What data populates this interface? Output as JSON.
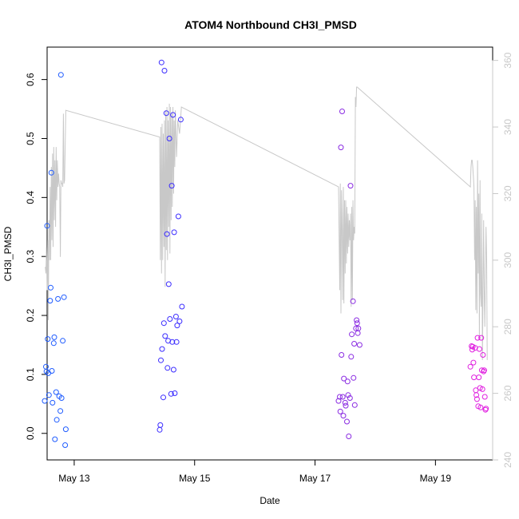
{
  "chart_data": {
    "type": "scatter",
    "title": "ATOM4 Northbound CH3I_PMSD",
    "xlabel": "Date",
    "ylabel": "CH3I_PMSD",
    "x_ticks": [
      "May 13",
      "May 15",
      "May 17",
      "May 19"
    ],
    "y_ticks": [
      "0.0",
      "0.1",
      "0.2",
      "0.3",
      "0.4",
      "0.5",
      "0.6"
    ],
    "y2_ticks": [
      "240",
      "260",
      "280",
      "300",
      "320",
      "340",
      "360"
    ],
    "xlim_days": [
      12.55,
      19.95
    ],
    "ylim": [
      -0.045,
      0.655
    ],
    "y2lim": [
      240,
      364
    ],
    "colors": {
      "blue": "#1f5cff",
      "indigo": "#3b2cff",
      "purple": "#8a2be2",
      "magenta": "#e020e0",
      "line": "#c8c8c8"
    },
    "series": [
      {
        "color_key": "blue",
        "points": [
          [
            12.51,
            0.055
          ],
          [
            12.53,
            0.113
          ],
          [
            12.54,
            0.105
          ],
          [
            12.55,
            0.352
          ],
          [
            12.56,
            0.16
          ],
          [
            12.57,
            0.102
          ],
          [
            12.58,
            0.065
          ],
          [
            12.6,
            0.225
          ],
          [
            12.61,
            0.247
          ],
          [
            12.62,
            0.442
          ],
          [
            12.63,
            0.106
          ],
          [
            12.64,
            0.052
          ],
          [
            12.66,
            0.153
          ],
          [
            12.67,
            0.163
          ],
          [
            12.68,
            -0.01
          ],
          [
            12.7,
            0.07
          ],
          [
            12.71,
            0.023
          ],
          [
            12.73,
            0.228
          ],
          [
            12.75,
            0.063
          ],
          [
            12.77,
            0.038
          ],
          [
            12.78,
            0.608
          ],
          [
            12.79,
            0.06
          ],
          [
            12.81,
            0.157
          ],
          [
            12.83,
            0.231
          ],
          [
            12.86,
            0.007
          ],
          [
            12.85,
            -0.02
          ]
        ]
      },
      {
        "color_key": "indigo",
        "points": [
          [
            14.42,
            0.006
          ],
          [
            14.43,
            0.014
          ],
          [
            14.44,
            0.124
          ],
          [
            14.45,
            0.629
          ],
          [
            14.46,
            0.143
          ],
          [
            14.48,
            0.061
          ],
          [
            14.49,
            0.187
          ],
          [
            14.5,
            0.615
          ],
          [
            14.51,
            0.165
          ],
          [
            14.53,
            0.543
          ],
          [
            14.54,
            0.338
          ],
          [
            14.55,
            0.111
          ],
          [
            14.56,
            0.157
          ],
          [
            14.57,
            0.253
          ],
          [
            14.58,
            0.5
          ],
          [
            14.59,
            0.194
          ],
          [
            14.61,
            0.067
          ],
          [
            14.62,
            0.42
          ],
          [
            14.63,
            0.155
          ],
          [
            14.64,
            0.54
          ],
          [
            14.65,
            0.108
          ],
          [
            14.66,
            0.341
          ],
          [
            14.67,
            0.068
          ],
          [
            14.69,
            0.198
          ],
          [
            14.7,
            0.155
          ],
          [
            14.71,
            0.183
          ],
          [
            14.73,
            0.368
          ],
          [
            14.75,
            0.19
          ],
          [
            14.77,
            0.532
          ],
          [
            14.79,
            0.215
          ]
        ]
      },
      {
        "color_key": "purple",
        "points": [
          [
            17.39,
            0.055
          ],
          [
            17.41,
            0.062
          ],
          [
            17.42,
            0.037
          ],
          [
            17.43,
            0.485
          ],
          [
            17.44,
            0.133
          ],
          [
            17.45,
            0.546
          ],
          [
            17.46,
            0.062
          ],
          [
            17.47,
            0.03
          ],
          [
            17.48,
            0.093
          ],
          [
            17.5,
            0.052
          ],
          [
            17.51,
            0.047
          ],
          [
            17.53,
            0.02
          ],
          [
            17.54,
            0.088
          ],
          [
            17.55,
            0.065
          ],
          [
            17.56,
            -0.005
          ],
          [
            17.58,
            0.06
          ],
          [
            17.59,
            0.42
          ],
          [
            17.6,
            0.13
          ],
          [
            17.61,
            0.168
          ],
          [
            17.63,
            0.224
          ],
          [
            17.64,
            0.094
          ],
          [
            17.65,
            0.152
          ],
          [
            17.66,
            0.048
          ],
          [
            17.68,
            0.178
          ],
          [
            17.69,
            0.192
          ],
          [
            17.7,
            0.187
          ],
          [
            17.71,
            0.17
          ],
          [
            17.72,
            0.178
          ],
          [
            17.74,
            0.15
          ]
        ]
      },
      {
        "color_key": "magenta",
        "points": [
          [
            19.58,
            0.113
          ],
          [
            19.6,
            0.148
          ],
          [
            19.61,
            0.142
          ],
          [
            19.62,
            0.147
          ],
          [
            19.63,
            0.12
          ],
          [
            19.64,
            0.095
          ],
          [
            19.66,
            0.145
          ],
          [
            19.67,
            0.073
          ],
          [
            19.68,
            0.065
          ],
          [
            19.69,
            0.058
          ],
          [
            19.7,
            0.162
          ],
          [
            19.71,
            0.046
          ],
          [
            19.72,
            0.095
          ],
          [
            19.73,
            0.143
          ],
          [
            19.74,
            0.077
          ],
          [
            19.75,
            0.044
          ],
          [
            19.76,
            0.162
          ],
          [
            19.77,
            0.107
          ],
          [
            19.78,
            0.075
          ],
          [
            19.79,
            0.133
          ],
          [
            19.8,
            0.105
          ],
          [
            19.81,
            0.107
          ],
          [
            19.82,
            0.062
          ],
          [
            19.83,
            0.04
          ],
          [
            19.84,
            0.042
          ]
        ]
      }
    ],
    "line_series": {
      "color_key": "line",
      "points": [
        [
          12.52,
          298
        ],
        [
          12.53,
          296
        ],
        [
          12.54,
          304
        ],
        [
          12.55,
          291
        ],
        [
          12.56,
          306
        ],
        [
          12.57,
          282
        ],
        [
          12.58,
          312
        ],
        [
          12.59,
          300
        ],
        [
          12.6,
          322
        ],
        [
          12.61,
          300
        ],
        [
          12.62,
          328
        ],
        [
          12.63,
          306
        ],
        [
          12.64,
          332
        ],
        [
          12.65,
          304
        ],
        [
          12.66,
          334
        ],
        [
          12.67,
          312
        ],
        [
          12.68,
          330
        ],
        [
          12.69,
          310
        ],
        [
          12.7,
          334
        ],
        [
          12.71,
          318
        ],
        [
          12.72,
          330
        ],
        [
          12.73,
          322
        ],
        [
          12.74,
          326
        ],
        [
          12.75,
          323
        ],
        [
          12.76,
          322
        ],
        [
          12.77,
          301
        ],
        [
          12.78,
          324
        ],
        [
          12.79,
          323
        ],
        [
          12.8,
          323
        ],
        [
          12.81,
          322
        ],
        [
          12.82,
          344
        ],
        [
          12.83,
          323
        ],
        [
          12.84,
          324
        ],
        [
          12.86,
          345
        ],
        [
          14.42,
          337
        ],
        [
          14.43,
          300
        ],
        [
          14.44,
          340
        ],
        [
          14.45,
          296
        ],
        [
          14.46,
          341
        ],
        [
          14.47,
          300
        ],
        [
          14.48,
          338
        ],
        [
          14.49,
          304
        ],
        [
          14.5,
          342
        ],
        [
          14.51,
          292
        ],
        [
          14.52,
          345
        ],
        [
          14.53,
          303
        ],
        [
          14.54,
          346
        ],
        [
          14.55,
          300
        ],
        [
          14.56,
          342
        ],
        [
          14.57,
          310
        ],
        [
          14.58,
          347
        ],
        [
          14.59,
          302
        ],
        [
          14.6,
          346
        ],
        [
          14.61,
          312
        ],
        [
          14.62,
          344
        ],
        [
          14.63,
          316
        ],
        [
          14.64,
          346
        ],
        [
          14.65,
          320
        ],
        [
          14.66,
          342
        ],
        [
          14.67,
          328
        ],
        [
          14.68,
          345
        ],
        [
          14.7,
          331
        ],
        [
          14.72,
          342
        ],
        [
          14.75,
          338
        ],
        [
          14.78,
          346
        ],
        [
          17.39,
          322
        ],
        [
          17.41,
          291
        ],
        [
          17.42,
          323
        ],
        [
          17.43,
          284
        ],
        [
          17.44,
          321
        ],
        [
          17.45,
          309
        ],
        [
          17.46,
          288
        ],
        [
          17.47,
          322
        ],
        [
          17.48,
          287
        ],
        [
          17.49,
          318
        ],
        [
          17.5,
          296
        ],
        [
          17.51,
          318
        ],
        [
          17.52,
          299
        ],
        [
          17.53,
          316
        ],
        [
          17.54,
          302
        ],
        [
          17.55,
          314
        ],
        [
          17.56,
          304
        ],
        [
          17.57,
          312
        ],
        [
          17.58,
          306
        ],
        [
          17.59,
          314
        ],
        [
          17.6,
          286
        ],
        [
          17.61,
          316
        ],
        [
          17.62,
          288
        ],
        [
          17.63,
          318
        ],
        [
          17.64,
          306
        ],
        [
          17.65,
          310
        ],
        [
          17.66,
          308
        ],
        [
          17.67,
          349
        ],
        [
          17.68,
          346
        ],
        [
          17.69,
          352
        ],
        [
          17.7,
          352
        ],
        [
          19.58,
          322
        ],
        [
          19.59,
          328
        ],
        [
          19.6,
          330
        ],
        [
          19.61,
          330
        ],
        [
          19.62,
          328
        ],
        [
          19.63,
          325
        ],
        [
          19.64,
          322
        ],
        [
          19.65,
          300
        ],
        [
          19.66,
          318
        ],
        [
          19.67,
          285
        ],
        [
          19.68,
          316
        ],
        [
          19.69,
          284
        ],
        [
          19.7,
          330
        ],
        [
          19.71,
          296
        ],
        [
          19.72,
          320
        ],
        [
          19.73,
          276
        ],
        [
          19.74,
          324
        ],
        [
          19.75,
          290
        ],
        [
          19.76,
          286
        ],
        [
          19.77,
          314
        ],
        [
          19.78,
          270
        ],
        [
          19.8,
          312
        ],
        [
          19.81,
          292
        ],
        [
          19.82,
          280
        ],
        [
          19.83,
          296
        ],
        [
          19.84,
          310
        ],
        [
          19.85,
          300
        ],
        [
          19.86,
          270
        ]
      ]
    }
  }
}
